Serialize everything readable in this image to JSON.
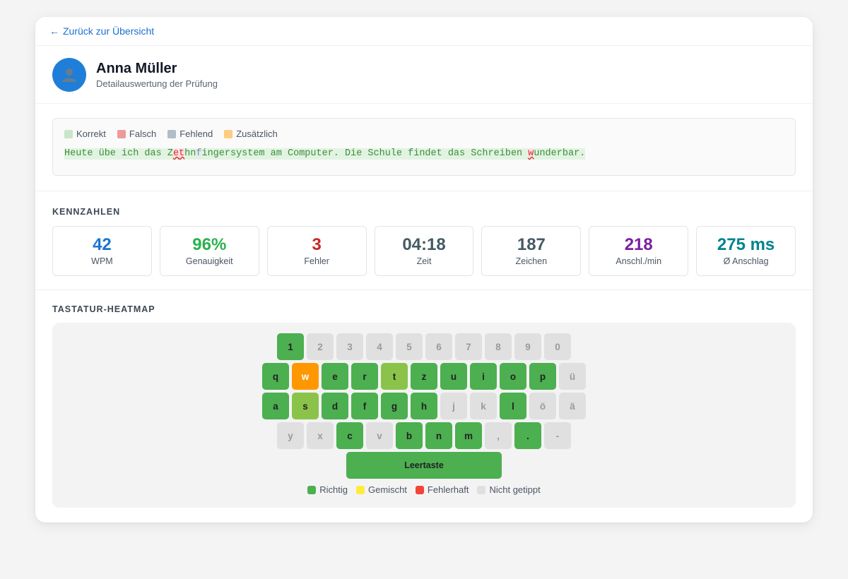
{
  "nav": {
    "back_label": "Zurück zur Übersicht"
  },
  "profile": {
    "name": "Anna Müller",
    "subtitle": "Detailauswertung der Prüfung",
    "avatar_icon": "person-icon"
  },
  "text_legend": [
    {
      "label": "Korrekt",
      "color": "#c8e6c9"
    },
    {
      "label": "Falsch",
      "color": "#ef9a9a"
    },
    {
      "label": "Fehlend",
      "color": "#b0bec5"
    },
    {
      "label": "Zusätzlich",
      "color": "#ffcc80"
    }
  ],
  "typed_text": {
    "segments": [
      {
        "text": "Heute übe ich das Z",
        "state": "correct"
      },
      {
        "text": "e",
        "state": "wrong"
      },
      {
        "text": "t",
        "state": "wrong"
      },
      {
        "text": "hn",
        "state": "correct"
      },
      {
        "text": "f",
        "state": "missing"
      },
      {
        "text": "ingersystem am Computer. Die Schule findet das Schreiben ",
        "state": "correct"
      },
      {
        "text": "w",
        "state": "wrong"
      },
      {
        "text": "underbar.",
        "state": "correct"
      }
    ]
  },
  "metrics": {
    "title": "KENNZAHLEN",
    "items": [
      {
        "value": "42",
        "label": "WPM",
        "color": "#1976d2"
      },
      {
        "value": "96%",
        "label": "Genauigkeit",
        "color": "#2bb24c"
      },
      {
        "value": "3",
        "label": "Fehler",
        "color": "#c62828"
      },
      {
        "value": "04:18",
        "label": "Zeit",
        "color": "#455a64"
      },
      {
        "value": "187",
        "label": "Zeichen",
        "color": "#455a64"
      },
      {
        "value": "218",
        "label": "Anschl./min",
        "color": "#7b1fa2"
      },
      {
        "value": "275 ms",
        "label": "Ø Anschlag",
        "color": "#00838f"
      }
    ]
  },
  "heatmap": {
    "title": "TASTATUR-HEATMAP",
    "colors": {
      "correct": "#4caf50",
      "light": "#8bc34a",
      "error": "#ff9800",
      "none": "#e0e0e0"
    },
    "rows": [
      [
        {
          "k": "1",
          "s": "correct"
        },
        {
          "k": "2",
          "s": "none"
        },
        {
          "k": "3",
          "s": "none"
        },
        {
          "k": "4",
          "s": "none"
        },
        {
          "k": "5",
          "s": "none"
        },
        {
          "k": "6",
          "s": "none"
        },
        {
          "k": "7",
          "s": "none"
        },
        {
          "k": "8",
          "s": "none"
        },
        {
          "k": "9",
          "s": "none"
        },
        {
          "k": "0",
          "s": "none"
        }
      ],
      [
        {
          "k": "q",
          "s": "correct"
        },
        {
          "k": "w",
          "s": "error"
        },
        {
          "k": "e",
          "s": "correct"
        },
        {
          "k": "r",
          "s": "correct"
        },
        {
          "k": "t",
          "s": "light"
        },
        {
          "k": "z",
          "s": "correct"
        },
        {
          "k": "u",
          "s": "correct"
        },
        {
          "k": "i",
          "s": "correct"
        },
        {
          "k": "o",
          "s": "correct"
        },
        {
          "k": "p",
          "s": "correct"
        },
        {
          "k": "ü",
          "s": "none"
        }
      ],
      [
        {
          "k": "a",
          "s": "correct"
        },
        {
          "k": "s",
          "s": "light"
        },
        {
          "k": "d",
          "s": "correct"
        },
        {
          "k": "f",
          "s": "correct"
        },
        {
          "k": "g",
          "s": "correct"
        },
        {
          "k": "h",
          "s": "correct"
        },
        {
          "k": "j",
          "s": "none"
        },
        {
          "k": "k",
          "s": "none"
        },
        {
          "k": "l",
          "s": "correct"
        },
        {
          "k": "ö",
          "s": "none"
        },
        {
          "k": "ä",
          "s": "none"
        }
      ],
      [
        {
          "k": "y",
          "s": "none"
        },
        {
          "k": "x",
          "s": "none"
        },
        {
          "k": "c",
          "s": "correct"
        },
        {
          "k": "v",
          "s": "none"
        },
        {
          "k": "b",
          "s": "correct"
        },
        {
          "k": "n",
          "s": "correct"
        },
        {
          "k": "m",
          "s": "correct"
        },
        {
          "k": ",",
          "s": "none"
        },
        {
          "k": ".",
          "s": "correct"
        },
        {
          "k": "-",
          "s": "none"
        }
      ],
      [
        {
          "k": "Leertaste",
          "s": "correct",
          "wide": true
        }
      ]
    ],
    "legend": [
      {
        "label": "Richtig",
        "color": "#4caf50"
      },
      {
        "label": "Gemischt",
        "color": "#ffeb3b"
      },
      {
        "label": "Fehlerhaft",
        "color": "#f44336"
      },
      {
        "label": "Nicht getippt",
        "color": "#e0e0e0"
      }
    ]
  }
}
